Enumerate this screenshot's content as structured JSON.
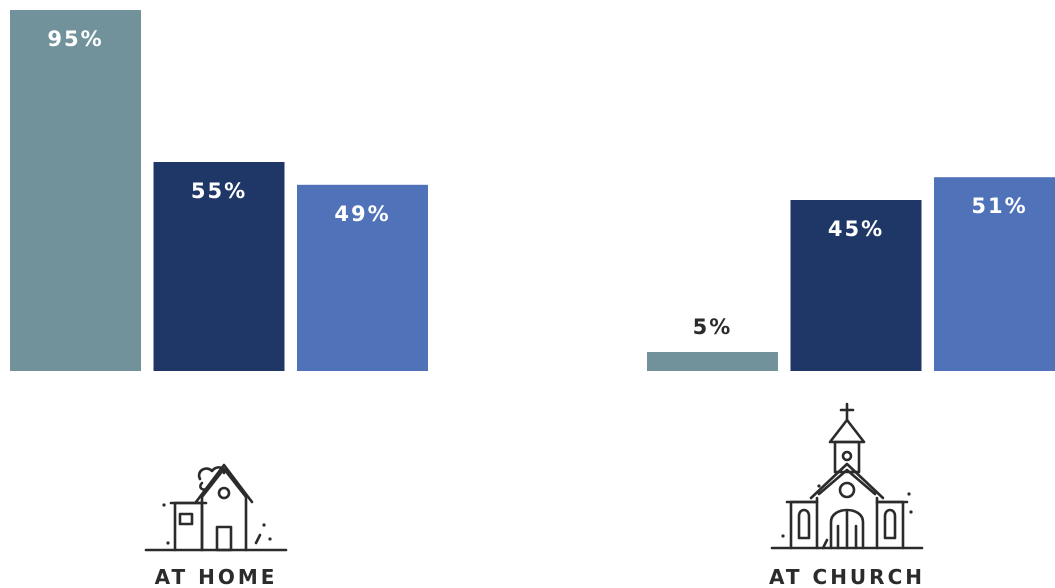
{
  "chart_data": {
    "type": "bar",
    "categories": [
      "AT HOME",
      "AT CHURCH"
    ],
    "series": [
      {
        "values": [
          95,
          5
        ],
        "labels": [
          "95%",
          "5%"
        ],
        "color": "#71929b",
        "label_color": "#ffffff",
        "small_label_color": "#2b2b2b"
      },
      {
        "values": [
          55,
          45
        ],
        "labels": [
          "55%",
          "45%"
        ],
        "color": "#1f3766",
        "label_color": "#ffffff",
        "small_label_color": "#2b2b2b"
      },
      {
        "values": [
          49,
          51
        ],
        "labels": [
          "49%",
          "51%"
        ],
        "color": "#4f72b8",
        "label_color": "#ffffff",
        "small_label_color": "#2b2b2b"
      }
    ],
    "ylim": [
      0,
      100
    ],
    "grid": false,
    "legend": "none",
    "icons": [
      "house-icon",
      "church-icon"
    ]
  }
}
